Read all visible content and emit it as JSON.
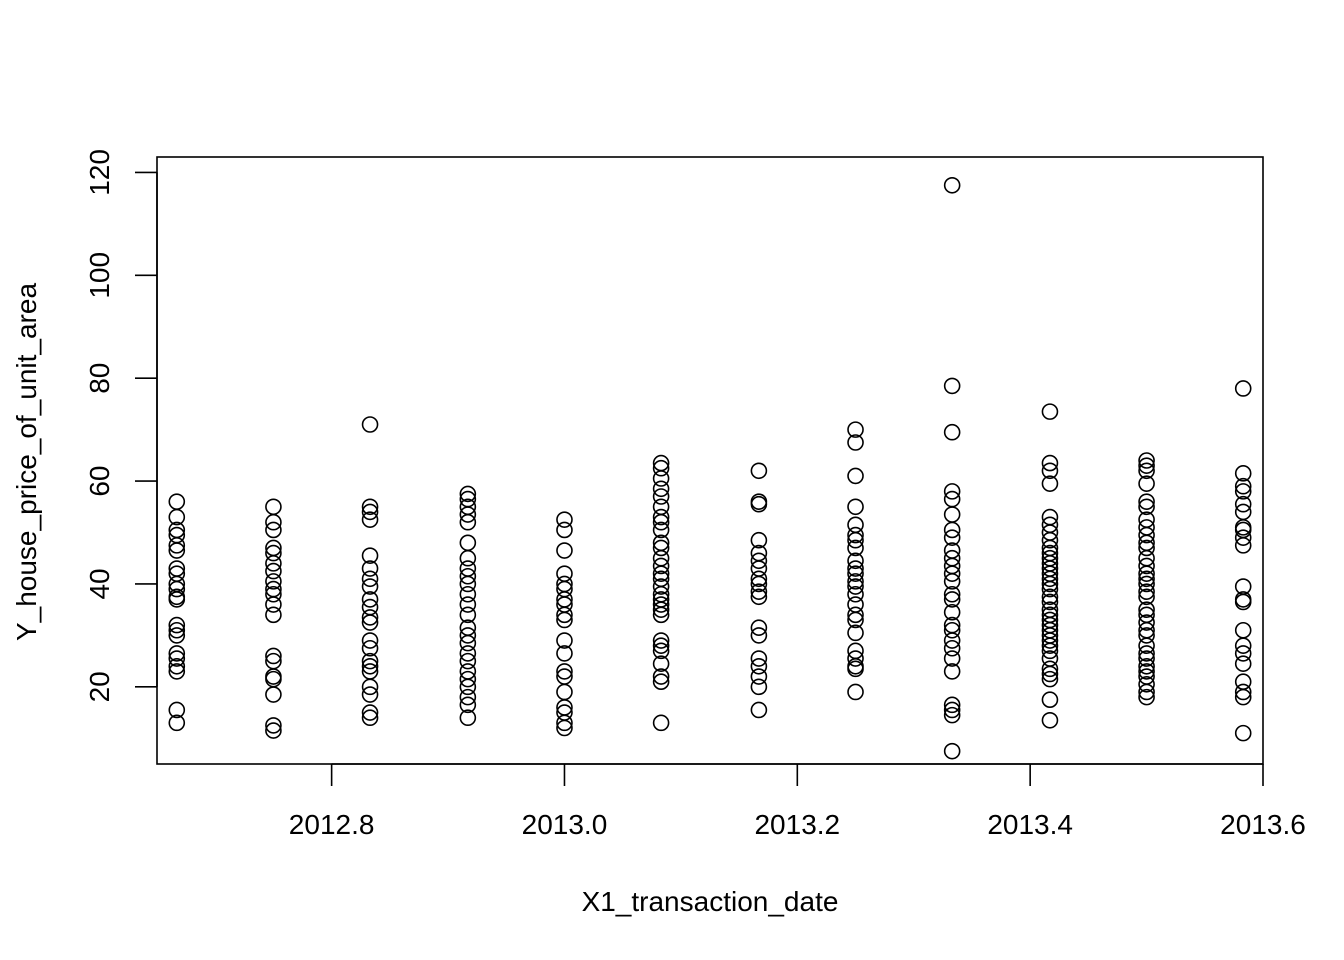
{
  "chart_data": {
    "type": "scatter",
    "title": "",
    "xlabel": "X1_transaction_date",
    "ylabel": "Y_house_price_of_unit_area",
    "xlim": [
      2012.65,
      2013.6
    ],
    "ylim": [
      5,
      123
    ],
    "x_ticks": [
      2012.8,
      2013.0,
      2013.2,
      2013.4,
      2013.6
    ],
    "x_tick_labels": [
      "2012.8",
      "2013.0",
      "2013.2",
      "2013.4",
      "2013.6"
    ],
    "y_ticks": [
      20,
      40,
      60,
      80,
      100,
      120
    ],
    "y_tick_labels": [
      "20",
      "40",
      "60",
      "80",
      "100",
      "120"
    ],
    "grid": false,
    "legend": "none",
    "point_color": "#000000",
    "series": [
      {
        "points": [
          [
            2012.667,
            56.0
          ],
          [
            2012.667,
            53.0
          ],
          [
            2012.667,
            50.5
          ],
          [
            2012.667,
            49.5
          ],
          [
            2012.667,
            47.5
          ],
          [
            2012.667,
            46.5
          ],
          [
            2012.667,
            43.0
          ],
          [
            2012.667,
            42.0
          ],
          [
            2012.667,
            40.0
          ],
          [
            2012.667,
            39.0
          ],
          [
            2012.667,
            37.5
          ],
          [
            2012.667,
            37.0
          ],
          [
            2012.667,
            32.0
          ],
          [
            2012.667,
            31.0
          ],
          [
            2012.667,
            30.0
          ],
          [
            2012.667,
            26.5
          ],
          [
            2012.667,
            25.5
          ],
          [
            2012.667,
            24.0
          ],
          [
            2012.667,
            23.0
          ],
          [
            2012.667,
            15.5
          ],
          [
            2012.667,
            13.0
          ],
          [
            2012.75,
            55.0
          ],
          [
            2012.75,
            52.0
          ],
          [
            2012.75,
            50.5
          ],
          [
            2012.75,
            47.0
          ],
          [
            2012.75,
            46.0
          ],
          [
            2012.75,
            44.0
          ],
          [
            2012.75,
            42.5
          ],
          [
            2012.75,
            40.5
          ],
          [
            2012.75,
            39.0
          ],
          [
            2012.75,
            38.0
          ],
          [
            2012.75,
            36.0
          ],
          [
            2012.75,
            34.0
          ],
          [
            2012.75,
            26.0
          ],
          [
            2012.75,
            25.0
          ],
          [
            2012.75,
            22.0
          ],
          [
            2012.75,
            21.5
          ],
          [
            2012.75,
            18.5
          ],
          [
            2012.75,
            12.5
          ],
          [
            2012.75,
            11.5
          ],
          [
            2012.833,
            71.0
          ],
          [
            2012.833,
            55.0
          ],
          [
            2012.833,
            54.0
          ],
          [
            2012.833,
            52.5
          ],
          [
            2012.833,
            45.5
          ],
          [
            2012.833,
            43.0
          ],
          [
            2012.833,
            41.0
          ],
          [
            2012.833,
            39.5
          ],
          [
            2012.833,
            37.0
          ],
          [
            2012.833,
            35.5
          ],
          [
            2012.833,
            33.5
          ],
          [
            2012.833,
            32.5
          ],
          [
            2012.833,
            29.0
          ],
          [
            2012.833,
            27.5
          ],
          [
            2012.833,
            25.0
          ],
          [
            2012.833,
            24.0
          ],
          [
            2012.833,
            23.0
          ],
          [
            2012.833,
            20.0
          ],
          [
            2012.833,
            18.5
          ],
          [
            2012.833,
            15.0
          ],
          [
            2012.833,
            14.0
          ],
          [
            2012.917,
            57.5
          ],
          [
            2012.917,
            56.5
          ],
          [
            2012.917,
            55.0
          ],
          [
            2012.917,
            53.5
          ],
          [
            2012.917,
            52.0
          ],
          [
            2012.917,
            48.0
          ],
          [
            2012.917,
            45.0
          ],
          [
            2012.917,
            43.0
          ],
          [
            2012.917,
            41.5
          ],
          [
            2012.917,
            40.0
          ],
          [
            2012.917,
            38.0
          ],
          [
            2012.917,
            36.0
          ],
          [
            2012.917,
            34.0
          ],
          [
            2012.917,
            31.5
          ],
          [
            2012.917,
            30.0
          ],
          [
            2012.917,
            28.5
          ],
          [
            2012.917,
            26.5
          ],
          [
            2012.917,
            25.0
          ],
          [
            2012.917,
            23.0
          ],
          [
            2012.917,
            21.5
          ],
          [
            2012.917,
            20.0
          ],
          [
            2012.917,
            18.0
          ],
          [
            2012.917,
            16.5
          ],
          [
            2012.917,
            14.0
          ],
          [
            2013.0,
            52.5
          ],
          [
            2013.0,
            50.5
          ],
          [
            2013.0,
            46.5
          ],
          [
            2013.0,
            42.0
          ],
          [
            2013.0,
            40.0
          ],
          [
            2013.0,
            39.0
          ],
          [
            2013.0,
            37.0
          ],
          [
            2013.0,
            36.0
          ],
          [
            2013.0,
            34.0
          ],
          [
            2013.0,
            33.0
          ],
          [
            2013.0,
            29.0
          ],
          [
            2013.0,
            26.5
          ],
          [
            2013.0,
            23.0
          ],
          [
            2013.0,
            22.0
          ],
          [
            2013.0,
            19.0
          ],
          [
            2013.0,
            16.0
          ],
          [
            2013.0,
            15.0
          ],
          [
            2013.0,
            13.0
          ],
          [
            2013.0,
            12.0
          ],
          [
            2013.083,
            63.5
          ],
          [
            2013.083,
            62.5
          ],
          [
            2013.083,
            60.5
          ],
          [
            2013.083,
            58.5
          ],
          [
            2013.083,
            57.0
          ],
          [
            2013.083,
            55.0
          ],
          [
            2013.083,
            53.0
          ],
          [
            2013.083,
            52.0
          ],
          [
            2013.083,
            50.5
          ],
          [
            2013.083,
            48.0
          ],
          [
            2013.083,
            47.0
          ],
          [
            2013.083,
            45.0
          ],
          [
            2013.083,
            43.5
          ],
          [
            2013.083,
            42.0
          ],
          [
            2013.083,
            41.0
          ],
          [
            2013.083,
            39.5
          ],
          [
            2013.083,
            38.0
          ],
          [
            2013.083,
            37.0
          ],
          [
            2013.083,
            36.0
          ],
          [
            2013.083,
            35.0
          ],
          [
            2013.083,
            34.0
          ],
          [
            2013.083,
            29.0
          ],
          [
            2013.083,
            28.0
          ],
          [
            2013.083,
            27.0
          ],
          [
            2013.083,
            24.5
          ],
          [
            2013.083,
            22.0
          ],
          [
            2013.083,
            21.0
          ],
          [
            2013.083,
            13.0
          ],
          [
            2013.167,
            62.0
          ],
          [
            2013.167,
            56.0
          ],
          [
            2013.167,
            55.5
          ],
          [
            2013.167,
            48.5
          ],
          [
            2013.167,
            46.0
          ],
          [
            2013.167,
            44.5
          ],
          [
            2013.167,
            43.0
          ],
          [
            2013.167,
            41.0
          ],
          [
            2013.167,
            40.0
          ],
          [
            2013.167,
            38.5
          ],
          [
            2013.167,
            37.5
          ],
          [
            2013.167,
            31.5
          ],
          [
            2013.167,
            30.0
          ],
          [
            2013.167,
            25.5
          ],
          [
            2013.167,
            24.0
          ],
          [
            2013.167,
            22.0
          ],
          [
            2013.167,
            20.0
          ],
          [
            2013.167,
            15.5
          ],
          [
            2013.25,
            70.0
          ],
          [
            2013.25,
            67.5
          ],
          [
            2013.25,
            61.0
          ],
          [
            2013.25,
            55.0
          ],
          [
            2013.25,
            51.5
          ],
          [
            2013.25,
            49.5
          ],
          [
            2013.25,
            48.5
          ],
          [
            2013.25,
            47.0
          ],
          [
            2013.25,
            44.5
          ],
          [
            2013.25,
            43.0
          ],
          [
            2013.25,
            42.0
          ],
          [
            2013.25,
            40.5
          ],
          [
            2013.25,
            39.5
          ],
          [
            2013.25,
            38.0
          ],
          [
            2013.25,
            36.0
          ],
          [
            2013.25,
            34.0
          ],
          [
            2013.25,
            33.0
          ],
          [
            2013.25,
            30.5
          ],
          [
            2013.25,
            27.0
          ],
          [
            2013.25,
            25.5
          ],
          [
            2013.25,
            24.0
          ],
          [
            2013.25,
            23.5
          ],
          [
            2013.25,
            19.0
          ],
          [
            2013.333,
            117.5
          ],
          [
            2013.333,
            78.5
          ],
          [
            2013.333,
            69.5
          ],
          [
            2013.333,
            58.0
          ],
          [
            2013.333,
            56.5
          ],
          [
            2013.333,
            53.5
          ],
          [
            2013.333,
            50.5
          ],
          [
            2013.333,
            49.0
          ],
          [
            2013.333,
            46.5
          ],
          [
            2013.333,
            45.0
          ],
          [
            2013.333,
            43.5
          ],
          [
            2013.333,
            42.0
          ],
          [
            2013.333,
            40.5
          ],
          [
            2013.333,
            38.0
          ],
          [
            2013.333,
            37.0
          ],
          [
            2013.333,
            34.5
          ],
          [
            2013.333,
            32.0
          ],
          [
            2013.333,
            31.0
          ],
          [
            2013.333,
            29.0
          ],
          [
            2013.333,
            27.5
          ],
          [
            2013.333,
            25.5
          ],
          [
            2013.333,
            23.0
          ],
          [
            2013.333,
            16.5
          ],
          [
            2013.333,
            15.5
          ],
          [
            2013.333,
            14.5
          ],
          [
            2013.333,
            7.5
          ],
          [
            2013.417,
            73.5
          ],
          [
            2013.417,
            63.5
          ],
          [
            2013.417,
            62.0
          ],
          [
            2013.417,
            59.5
          ],
          [
            2013.417,
            53.0
          ],
          [
            2013.417,
            51.5
          ],
          [
            2013.417,
            50.0
          ],
          [
            2013.417,
            48.5
          ],
          [
            2013.417,
            47.0
          ],
          [
            2013.417,
            46.0
          ],
          [
            2013.417,
            45.0
          ],
          [
            2013.417,
            44.0
          ],
          [
            2013.417,
            43.0
          ],
          [
            2013.417,
            42.0
          ],
          [
            2013.417,
            41.0
          ],
          [
            2013.417,
            40.0
          ],
          [
            2013.417,
            39.0
          ],
          [
            2013.417,
            37.5
          ],
          [
            2013.417,
            36.5
          ],
          [
            2013.417,
            35.0
          ],
          [
            2013.417,
            34.0
          ],
          [
            2013.417,
            33.0
          ],
          [
            2013.417,
            32.0
          ],
          [
            2013.417,
            31.0
          ],
          [
            2013.417,
            30.0
          ],
          [
            2013.417,
            29.0
          ],
          [
            2013.417,
            28.0
          ],
          [
            2013.417,
            27.0
          ],
          [
            2013.417,
            25.5
          ],
          [
            2013.417,
            23.5
          ],
          [
            2013.417,
            22.5
          ],
          [
            2013.417,
            21.5
          ],
          [
            2013.417,
            17.5
          ],
          [
            2013.417,
            13.5
          ],
          [
            2013.5,
            64.0
          ],
          [
            2013.5,
            63.0
          ],
          [
            2013.5,
            62.0
          ],
          [
            2013.5,
            59.5
          ],
          [
            2013.5,
            56.0
          ],
          [
            2013.5,
            55.0
          ],
          [
            2013.5,
            52.5
          ],
          [
            2013.5,
            51.0
          ],
          [
            2013.5,
            49.5
          ],
          [
            2013.5,
            48.0
          ],
          [
            2013.5,
            47.0
          ],
          [
            2013.5,
            45.0
          ],
          [
            2013.5,
            43.5
          ],
          [
            2013.5,
            42.0
          ],
          [
            2013.5,
            41.0
          ],
          [
            2013.5,
            40.0
          ],
          [
            2013.5,
            38.5
          ],
          [
            2013.5,
            37.5
          ],
          [
            2013.5,
            35.0
          ],
          [
            2013.5,
            34.0
          ],
          [
            2013.5,
            32.5
          ],
          [
            2013.5,
            31.0
          ],
          [
            2013.5,
            30.0
          ],
          [
            2013.5,
            28.0
          ],
          [
            2013.5,
            26.5
          ],
          [
            2013.5,
            25.5
          ],
          [
            2013.5,
            24.0
          ],
          [
            2013.5,
            23.0
          ],
          [
            2013.5,
            22.0
          ],
          [
            2013.5,
            20.5
          ],
          [
            2013.5,
            19.0
          ],
          [
            2013.5,
            18.0
          ],
          [
            2013.583,
            78.0
          ],
          [
            2013.583,
            61.5
          ],
          [
            2013.583,
            59.0
          ],
          [
            2013.583,
            58.0
          ],
          [
            2013.583,
            55.5
          ],
          [
            2013.583,
            54.0
          ],
          [
            2013.583,
            51.0
          ],
          [
            2013.583,
            50.5
          ],
          [
            2013.583,
            49.0
          ],
          [
            2013.583,
            47.5
          ],
          [
            2013.583,
            39.5
          ],
          [
            2013.583,
            37.0
          ],
          [
            2013.583,
            36.5
          ],
          [
            2013.583,
            31.0
          ],
          [
            2013.583,
            28.0
          ],
          [
            2013.583,
            26.5
          ],
          [
            2013.583,
            24.5
          ],
          [
            2013.583,
            21.0
          ],
          [
            2013.583,
            19.0
          ],
          [
            2013.583,
            18.0
          ],
          [
            2013.583,
            11.0
          ]
        ]
      }
    ]
  }
}
